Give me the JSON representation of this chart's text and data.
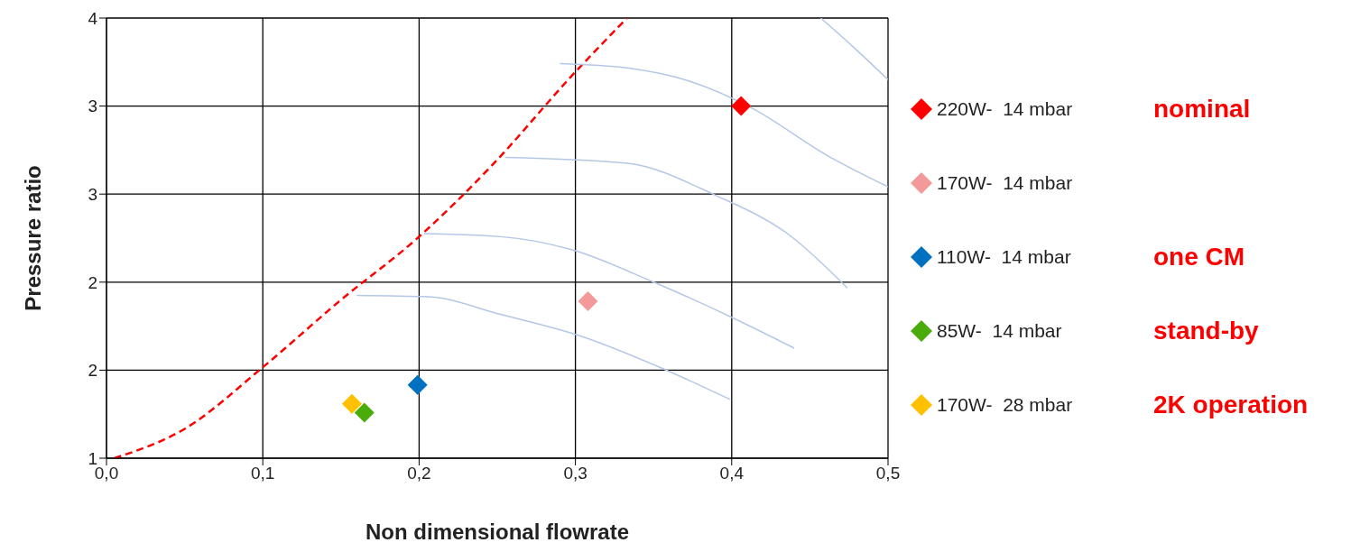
{
  "chart_data": {
    "type": "scatter",
    "xlabel": "Non dimensional flowrate",
    "ylabel": "Pressure ratio",
    "xlim": [
      0,
      0.5
    ],
    "xticks": [
      {
        "value": 0,
        "label": "0,0"
      },
      {
        "value": 0.1,
        "label": "0,1"
      },
      {
        "value": 0.2,
        "label": "0,2"
      },
      {
        "value": 0.3,
        "label": "0,3"
      },
      {
        "value": 0.4,
        "label": "0,4"
      },
      {
        "value": 0.5,
        "label": "0,5"
      }
    ],
    "ylim": [
      1,
      4
    ],
    "yticks": [
      {
        "value": 1,
        "label": "1"
      },
      {
        "value": 1.6,
        "label": "2"
      },
      {
        "value": 2.2,
        "label": "2"
      },
      {
        "value": 2.8,
        "label": "3"
      },
      {
        "value": 3.4,
        "label": "3"
      },
      {
        "value": 4,
        "label": "4"
      }
    ],
    "grid": true,
    "legend": "right",
    "marker": "diamond",
    "series": [
      {
        "type": "line",
        "color": "#ff0000",
        "line_style": "dashed",
        "marker": "none",
        "x": [
          0.005,
          0.05,
          0.1,
          0.149,
          0.2,
          0.247,
          0.298,
          0.333
        ],
        "values": [
          1.0,
          1.2,
          1.62,
          2.07,
          2.51,
          3.0,
          3.61,
          4.0
        ]
      },
      {
        "type": "line",
        "color": "#b4c7e7",
        "marker": "none",
        "x": [
          0.16,
          0.206,
          0.252,
          0.304,
          0.356,
          0.399
        ],
        "values": [
          2.11,
          2.1,
          1.98,
          1.83,
          1.61,
          1.4
        ]
      },
      {
        "type": "line",
        "color": "#b4c7e7",
        "marker": "none",
        "x": [
          0.203,
          0.252,
          0.298,
          0.35,
          0.402,
          0.44
        ],
        "values": [
          2.53,
          2.51,
          2.42,
          2.2,
          1.95,
          1.75
        ]
      },
      {
        "type": "line",
        "color": "#b4c7e7",
        "marker": "none",
        "x": [
          0.255,
          0.333,
          0.39,
          0.437,
          0.474
        ],
        "values": [
          3.05,
          3.01,
          2.79,
          2.52,
          2.16
        ]
      },
      {
        "type": "line",
        "color": "#b4c7e7",
        "marker": "none",
        "x": [
          0.29,
          0.333,
          0.373,
          0.414,
          0.46,
          0.5
        ],
        "values": [
          3.69,
          3.66,
          3.57,
          3.38,
          3.07,
          2.85
        ]
      },
      {
        "type": "line",
        "color": "#b4c7e7",
        "marker": "none",
        "x": [
          0.457,
          0.477,
          0.5
        ],
        "values": [
          4.0,
          3.81,
          3.58
        ]
      },
      {
        "name": "220W-  14 mbar",
        "color": "#ff0000",
        "x": [
          0.406
        ],
        "values": [
          3.4
        ]
      },
      {
        "name": "170W-  14 mbar",
        "color": "#f4999a",
        "x": [
          0.308
        ],
        "values": [
          2.07
        ]
      },
      {
        "name": "110W-  14 mbar",
        "color": "#0070c0",
        "x": [
          0.199
        ],
        "values": [
          1.5
        ]
      },
      {
        "name": "85W-  14 mbar",
        "color": "#4aac0a",
        "x": [
          0.165
        ],
        "values": [
          1.31
        ]
      },
      {
        "name": "170W-  28 mbar",
        "color": "#ffc000",
        "x": [
          0.157
        ],
        "values": [
          1.37
        ]
      }
    ],
    "annotations": [
      "nominal",
      "one CM",
      "stand-by",
      "2K operation"
    ]
  }
}
